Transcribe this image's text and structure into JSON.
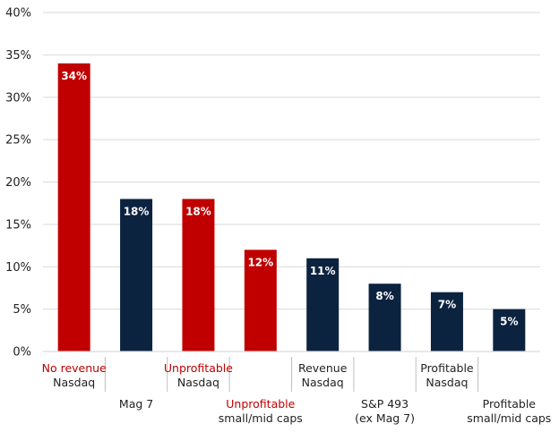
{
  "chart_data": {
    "type": "bar",
    "title": "",
    "xlabel": "",
    "ylabel": "",
    "ylim": [
      0,
      40
    ],
    "yticks": [
      0,
      5,
      10,
      15,
      20,
      25,
      30,
      35,
      40
    ],
    "ytick_labels": [
      "0%",
      "5%",
      "10%",
      "15%",
      "20%",
      "25%",
      "30%",
      "35%",
      "40%"
    ],
    "grid": true,
    "categories": [
      {
        "lines": [
          "No revenue",
          "Nasdaq"
        ],
        "highlight_line": 0
      },
      {
        "lines": [
          "Mag 7"
        ],
        "highlight_line": null
      },
      {
        "lines": [
          "Unprofitable",
          "Nasdaq"
        ],
        "highlight_line": 0
      },
      {
        "lines": [
          "Unprofitable",
          "small/mid caps"
        ],
        "highlight_line": 0
      },
      {
        "lines": [
          "Revenue",
          "Nasdaq"
        ],
        "highlight_line": null
      },
      {
        "lines": [
          "S&P 493",
          "(ex Mag 7)"
        ],
        "highlight_line": null
      },
      {
        "lines": [
          "Profitable",
          "Nasdaq"
        ],
        "highlight_line": null
      },
      {
        "lines": [
          "Profitable",
          "small/mid caps"
        ],
        "highlight_line": null
      }
    ],
    "values": [
      34,
      18,
      18,
      12,
      11,
      8,
      7,
      5
    ],
    "value_labels": [
      "34%",
      "18%",
      "18%",
      "12%",
      "11%",
      "8%",
      "7%",
      "5%"
    ],
    "bar_colors": [
      "#c00000",
      "#0c2340",
      "#c00000",
      "#c00000",
      "#0c2340",
      "#0c2340",
      "#0c2340",
      "#0c2340"
    ],
    "colors": {
      "red": "#c00000",
      "navy": "#0c2340",
      "grid": "#d9d9d9"
    }
  }
}
